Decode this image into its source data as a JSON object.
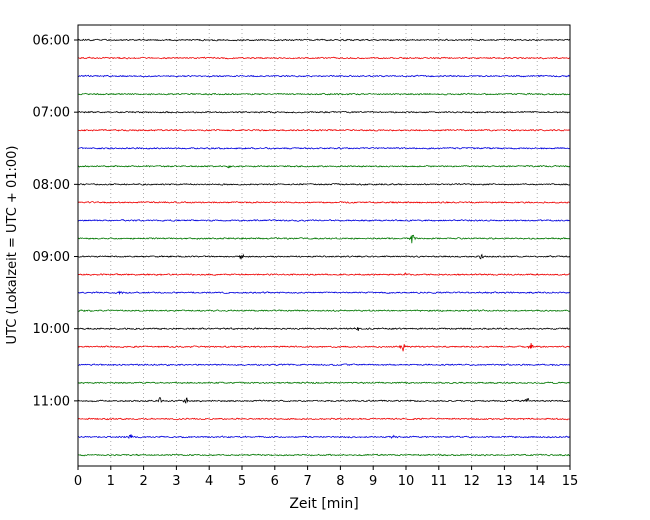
{
  "chart_data": {
    "type": "line",
    "subtype": "seismogram-helicorder",
    "title": "",
    "xlabel": "Zeit  [min]",
    "ylabel": "UTC (Lokalzeit = UTC + 01:00)",
    "x_range": [
      0,
      15
    ],
    "x_ticks": [
      "0",
      "1",
      "2",
      "3",
      "4",
      "5",
      "6",
      "7",
      "8",
      "9",
      "10",
      "11",
      "12",
      "13",
      "14",
      "15"
    ],
    "hour_labels": [
      "06:00",
      "07:00",
      "08:00",
      "09:00",
      "10:00",
      "11:00"
    ],
    "trace_interval_min": 15,
    "grid": true,
    "legend": false,
    "colors_cycle": [
      "#000000",
      "#ee0000",
      "#0000dd",
      "#007700"
    ],
    "traces": [
      {
        "start": "06:00",
        "color": "#000000",
        "events": []
      },
      {
        "start": "06:15",
        "color": "#ee0000",
        "events": []
      },
      {
        "start": "06:30",
        "color": "#0000dd",
        "events": []
      },
      {
        "start": "06:45",
        "color": "#007700",
        "events": []
      },
      {
        "start": "07:00",
        "color": "#000000",
        "events": []
      },
      {
        "start": "07:15",
        "color": "#ee0000",
        "events": []
      },
      {
        "start": "07:30",
        "color": "#0000dd",
        "events": []
      },
      {
        "start": "07:45",
        "color": "#007700",
        "events": [
          {
            "x": 4.6,
            "amp": 1.5
          }
        ]
      },
      {
        "start": "08:00",
        "color": "#000000",
        "events": []
      },
      {
        "start": "08:15",
        "color": "#ee0000",
        "events": []
      },
      {
        "start": "08:30",
        "color": "#0000dd",
        "events": []
      },
      {
        "start": "08:45",
        "color": "#007700",
        "events": [
          {
            "x": 10.2,
            "amp": 7
          }
        ]
      },
      {
        "start": "09:00",
        "color": "#000000",
        "events": [
          {
            "x": 5.0,
            "amp": 3
          },
          {
            "x": 12.3,
            "amp": 3.5
          }
        ]
      },
      {
        "start": "09:15",
        "color": "#ee0000",
        "events": [
          {
            "x": 10.0,
            "amp": 2
          }
        ]
      },
      {
        "start": "09:30",
        "color": "#0000dd",
        "events": [
          {
            "x": 1.3,
            "amp": 3
          }
        ]
      },
      {
        "start": "09:45",
        "color": "#007700",
        "events": []
      },
      {
        "start": "10:00",
        "color": "#000000",
        "events": [
          {
            "x": 8.5,
            "amp": 4
          }
        ]
      },
      {
        "start": "10:15",
        "color": "#ee0000",
        "events": [
          {
            "x": 9.9,
            "amp": 6
          },
          {
            "x": 13.8,
            "amp": 4.5
          }
        ]
      },
      {
        "start": "10:30",
        "color": "#0000dd",
        "events": []
      },
      {
        "start": "10:45",
        "color": "#007700",
        "events": []
      },
      {
        "start": "11:00",
        "color": "#000000",
        "events": [
          {
            "x": 2.5,
            "amp": 3.5
          },
          {
            "x": 3.3,
            "amp": 3
          },
          {
            "x": 13.7,
            "amp": 2.5
          }
        ]
      },
      {
        "start": "11:15",
        "color": "#ee0000",
        "events": []
      },
      {
        "start": "11:30",
        "color": "#0000dd",
        "events": [
          {
            "x": 1.6,
            "amp": 3
          },
          {
            "x": 9.6,
            "amp": 2
          }
        ]
      },
      {
        "start": "11:45",
        "color": "#007700",
        "events": []
      }
    ]
  }
}
